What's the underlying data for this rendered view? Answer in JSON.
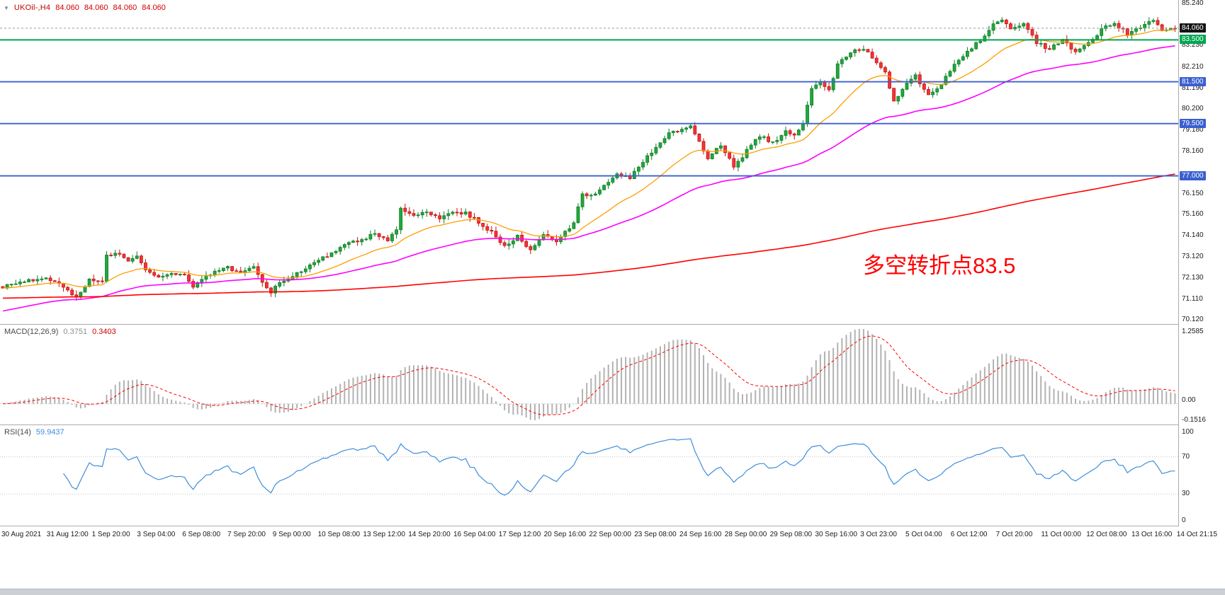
{
  "header": {
    "dropdown_icon": "▼",
    "symbol_label": "UKOil-,H4",
    "open": "84.060",
    "high": "84.060",
    "low": "84.060",
    "close": "84.060"
  },
  "annotation": {
    "text": "多空转折点83.5",
    "color": "#ff0000"
  },
  "price_axis": {
    "labels": [
      {
        "text": "85.240",
        "value": 85.24
      },
      {
        "text": "83.230",
        "value": 83.23
      },
      {
        "text": "82.210",
        "value": 82.21
      },
      {
        "text": "81.190",
        "value": 81.19
      },
      {
        "text": "80.200",
        "value": 80.2
      },
      {
        "text": "79.180",
        "value": 79.18
      },
      {
        "text": "78.160",
        "value": 78.16
      },
      {
        "text": "76.150",
        "value": 76.15
      },
      {
        "text": "75.160",
        "value": 75.16
      },
      {
        "text": "74.140",
        "value": 74.14
      },
      {
        "text": "73.120",
        "value": 73.12
      },
      {
        "text": "72.130",
        "value": 72.13
      },
      {
        "text": "71.110",
        "value": 71.11
      },
      {
        "text": "70.120",
        "value": 70.12
      }
    ],
    "tags": [
      {
        "text": "84.060",
        "value": 84.06,
        "bg": "#141414",
        "fg": "#ffffff",
        "kind": "bid-price"
      },
      {
        "text": "83.500",
        "value": 83.5,
        "bg": "#00A651",
        "fg": "#ffffff",
        "kind": "hline"
      },
      {
        "text": "81.500",
        "value": 81.5,
        "bg": "#3A5FD0",
        "fg": "#ffffff",
        "kind": "hline"
      },
      {
        "text": "79.500",
        "value": 79.5,
        "bg": "#3A5FD0",
        "fg": "#ffffff",
        "kind": "hline"
      },
      {
        "text": "77.000",
        "value": 77.0,
        "bg": "#3A5FD0",
        "fg": "#ffffff",
        "kind": "hline"
      }
    ]
  },
  "time_axis": {
    "labels": [
      "30 Aug 2021",
      "31 Aug 12:00",
      "1 Sep 20:00",
      "3 Sep 04:00",
      "6 Sep 08:00",
      "7 Sep 20:00",
      "9 Sep 00:00",
      "10 Sep 08:00",
      "13 Sep 12:00",
      "14 Sep 20:00",
      "16 Sep 04:00",
      "17 Sep 12:00",
      "20 Sep 16:00",
      "22 Sep 00:00",
      "23 Sep 08:00",
      "24 Sep 16:00",
      "28 Sep 00:00",
      "29 Sep 08:00",
      "30 Sep 16:00",
      "3 Oct 23:00",
      "5 Oct 04:00",
      "6 Oct 12:00",
      "7 Oct 20:00",
      "11 Oct 00:00",
      "12 Oct 08:00",
      "13 Oct 16:00",
      "14 Oct 21:15"
    ]
  },
  "chart_data": {
    "type": "candlestick",
    "symbol": "UKOil-",
    "timeframe": "H4",
    "title": "UKOil-,H4 84.060 84.060 84.060 84.060",
    "num_candles": 272,
    "y_axis": {
      "top_price": 85.4,
      "bottom_price": 69.93,
      "tick_step": 1.01,
      "grid": false
    },
    "close_noise": 0.16,
    "wick_extra_max": 0.22,
    "price_waypoints": [
      [
        0,
        71.7
      ],
      [
        4,
        71.9
      ],
      [
        8,
        72.1
      ],
      [
        12,
        72.0
      ],
      [
        15,
        71.5
      ],
      [
        17,
        71.2
      ],
      [
        20,
        72.0
      ],
      [
        23,
        71.9
      ],
      [
        24,
        73.2
      ],
      [
        27,
        73.3
      ],
      [
        29,
        72.9
      ],
      [
        31,
        73.1
      ],
      [
        33,
        72.5
      ],
      [
        36,
        72.1
      ],
      [
        39,
        72.4
      ],
      [
        42,
        72.2
      ],
      [
        44,
        71.6
      ],
      [
        46,
        72.1
      ],
      [
        49,
        72.4
      ],
      [
        52,
        72.6
      ],
      [
        55,
        72.4
      ],
      [
        58,
        72.6
      ],
      [
        60,
        71.9
      ],
      [
        62,
        71.4
      ],
      [
        64,
        71.9
      ],
      [
        67,
        72.2
      ],
      [
        70,
        72.6
      ],
      [
        73,
        73.0
      ],
      [
        76,
        73.3
      ],
      [
        79,
        73.7
      ],
      [
        82,
        73.9
      ],
      [
        84,
        74.0
      ],
      [
        86,
        74.3
      ],
      [
        89,
        73.9
      ],
      [
        91,
        74.4
      ],
      [
        92,
        75.4
      ],
      [
        95,
        75.1
      ],
      [
        98,
        75.3
      ],
      [
        101,
        75.0
      ],
      [
        104,
        75.3
      ],
      [
        107,
        75.2
      ],
      [
        110,
        74.8
      ],
      [
        113,
        74.3
      ],
      [
        116,
        73.6
      ],
      [
        119,
        74.1
      ],
      [
        122,
        73.5
      ],
      [
        125,
        74.2
      ],
      [
        128,
        73.8
      ],
      [
        130,
        74.4
      ],
      [
        132,
        74.7
      ],
      [
        134,
        76.2
      ],
      [
        136,
        76.0
      ],
      [
        139,
        76.6
      ],
      [
        142,
        77.1
      ],
      [
        145,
        76.9
      ],
      [
        148,
        77.7
      ],
      [
        151,
        78.4
      ],
      [
        154,
        79.0
      ],
      [
        157,
        79.2
      ],
      [
        159,
        79.4
      ],
      [
        161,
        78.7
      ],
      [
        163,
        77.8
      ],
      [
        166,
        78.5
      ],
      [
        169,
        77.4
      ],
      [
        172,
        78.2
      ],
      [
        175,
        78.9
      ],
      [
        178,
        78.6
      ],
      [
        181,
        79.1
      ],
      [
        183,
        78.9
      ],
      [
        185,
        79.5
      ],
      [
        187,
        81.2
      ],
      [
        189,
        81.5
      ],
      [
        191,
        81.1
      ],
      [
        193,
        82.3
      ],
      [
        196,
        82.9
      ],
      [
        199,
        83.1
      ],
      [
        201,
        82.7
      ],
      [
        204,
        81.9
      ],
      [
        206,
        80.6
      ],
      [
        209,
        81.4
      ],
      [
        211,
        81.8
      ],
      [
        214,
        80.8
      ],
      [
        217,
        81.4
      ],
      [
        220,
        82.3
      ],
      [
        223,
        82.9
      ],
      [
        226,
        83.5
      ],
      [
        229,
        84.2
      ],
      [
        231,
        84.5
      ],
      [
        233,
        84.0
      ],
      [
        236,
        84.3
      ],
      [
        239,
        83.4
      ],
      [
        242,
        83.0
      ],
      [
        245,
        83.6
      ],
      [
        248,
        82.9
      ],
      [
        251,
        83.3
      ],
      [
        254,
        84.0
      ],
      [
        257,
        84.3
      ],
      [
        260,
        83.8
      ],
      [
        263,
        84.1
      ],
      [
        266,
        84.5
      ],
      [
        268,
        84.0
      ],
      [
        271,
        84.06
      ]
    ],
    "candle_colors": {
      "up_fill": "#22A83C",
      "up_stroke": "#0F7D27",
      "down_fill": "#F23535",
      "down_stroke": "#C41414"
    },
    "moving_averages": [
      {
        "name": "fast-ma",
        "period": 20,
        "seed": null,
        "color": "#FF9D00",
        "width": 1.3
      },
      {
        "name": "mid-ma",
        "period": 60,
        "seed": 70.5,
        "color": "#FF00FF",
        "width": 1.6
      },
      {
        "name": "slow-ma",
        "period": 380,
        "seed": 71.15,
        "color": "#FF0000",
        "width": 1.6
      }
    ],
    "horizontal_lines": [
      {
        "price": 83.5,
        "color": "#00A651",
        "width": 2,
        "tag": "83.500"
      },
      {
        "price": 81.5,
        "color": "#3A5FD0",
        "width": 1.8,
        "tag": "81.500"
      },
      {
        "price": 79.5,
        "color": "#3A5FD0",
        "width": 1.8,
        "tag": "79.500"
      },
      {
        "price": 77.0,
        "color": "#3A5FD0",
        "width": 1.8,
        "tag": "77.000"
      }
    ],
    "current_price": {
      "value": 84.06,
      "tag": "84.060"
    },
    "indicators": {
      "macd": {
        "label": "MACD(12,26,9)",
        "fast": 12,
        "slow": 26,
        "signal": 9,
        "value_main": "0.3751",
        "value_signal": "0.3403",
        "axis_max_label": "1.2585",
        "axis_zero_label": "0.00",
        "axis_min_label": "-0.1516",
        "histogram_color": "#B2B2B2",
        "signal_color": "#FF0000"
      },
      "rsi": {
        "label": "RSI(14)",
        "period": 14,
        "value": "59.9437",
        "levels": [
          70,
          30
        ],
        "axis_labels": [
          "100",
          "70",
          "30",
          "0"
        ],
        "line_color": "#3E8EDB",
        "scale": [
          0,
          100
        ]
      }
    },
    "x_axis_labels": [
      "30 Aug 2021",
      "31 Aug 12:00",
      "1 Sep 20:00",
      "3 Sep 04:00",
      "6 Sep 08:00",
      "7 Sep 20:00",
      "9 Sep 00:00",
      "10 Sep 08:00",
      "13 Sep 12:00",
      "14 Sep 20:00",
      "16 Sep 04:00",
      "17 Sep 12:00",
      "20 Sep 16:00",
      "22 Sep 00:00",
      "23 Sep 08:00",
      "24 Sep 16:00",
      "28 Sep 00:00",
      "29 Sep 08:00",
      "30 Sep 16:00",
      "3 Oct 23:00",
      "5 Oct 04:00",
      "6 Oct 12:00",
      "7 Oct 20:00",
      "11 Oct 00:00",
      "12 Oct 08:00",
      "13 Oct 16:00",
      "14 Oct 21:15"
    ]
  }
}
